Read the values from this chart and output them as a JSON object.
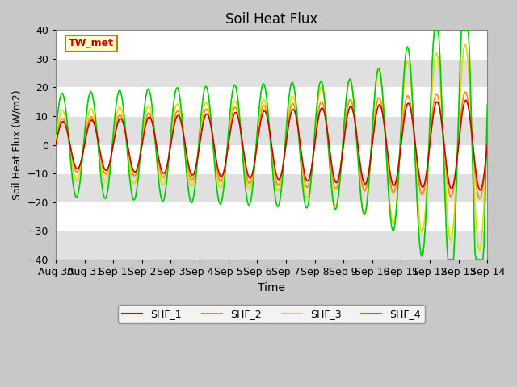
{
  "title": "Soil Heat Flux",
  "ylabel": "Soil Heat Flux (W/m2)",
  "xlabel": "Time",
  "ylim": [
    -40,
    40
  ],
  "annotation": "TW_met",
  "line_colors": [
    "#cc0000",
    "#ff8800",
    "#dddd00",
    "#00cc00"
  ],
  "line_labels": [
    "SHF_1",
    "SHF_2",
    "SHF_3",
    "SHF_4"
  ],
  "bg_color": "#e8e8e8",
  "xtick_labels": [
    "Aug 30",
    "Aug 31",
    "Sep 1",
    "Sep 2",
    "Sep 3",
    "Sep 4",
    "Sep 5",
    "Sep 6",
    "Sep 7",
    "Sep 8",
    "Sep 9",
    "Sep 10",
    "Sep 11",
    "Sep 12",
    "Sep 13",
    "Sep 14"
  ],
  "n_days": 16,
  "pts_per_day": 24
}
